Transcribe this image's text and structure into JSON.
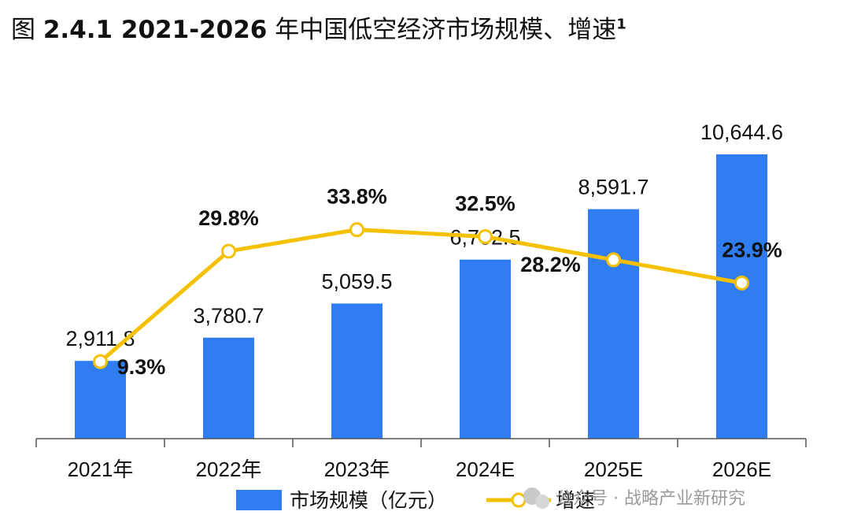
{
  "title": {
    "prefix": "图 ",
    "number": "2.4.1 2021-2026",
    "text": " 年中国低空经济市场规模、增速",
    "footnote": "1"
  },
  "colors": {
    "bar": "#2f7df0",
    "line": "#f5c000",
    "marker_fill": "#ffffff"
  },
  "chart_data": {
    "type": "bar",
    "categories": [
      "2021年",
      "2022年",
      "2023年",
      "2024E",
      "2025E",
      "2026E"
    ],
    "series": [
      {
        "name": "市场规模（亿元）",
        "type": "bar",
        "values": [
          2911.8,
          3780.7,
          5059.5,
          6702.5,
          8591.7,
          10644.6
        ],
        "labels": [
          "2,911.8",
          "3,780.7",
          "5,059.5",
          "6,702.5",
          "8,591.7",
          "10,644.6"
        ]
      },
      {
        "name": "增速",
        "type": "line",
        "values": [
          9.3,
          29.8,
          33.8,
          32.5,
          28.2,
          23.9
        ],
        "labels": [
          "9.3%",
          "29.8%",
          "33.8%",
          "32.5%",
          "28.2%",
          "23.9%"
        ]
      }
    ],
    "ylim_bars": [
      0,
      12000
    ],
    "ylim_rate": [
      -5,
      45
    ],
    "grid": false,
    "legend_position": "bottom"
  },
  "legend": {
    "bar_label": "市场规模（亿元）",
    "line_label": "增速"
  },
  "watermark": "公众号 · 战略产业新研究"
}
